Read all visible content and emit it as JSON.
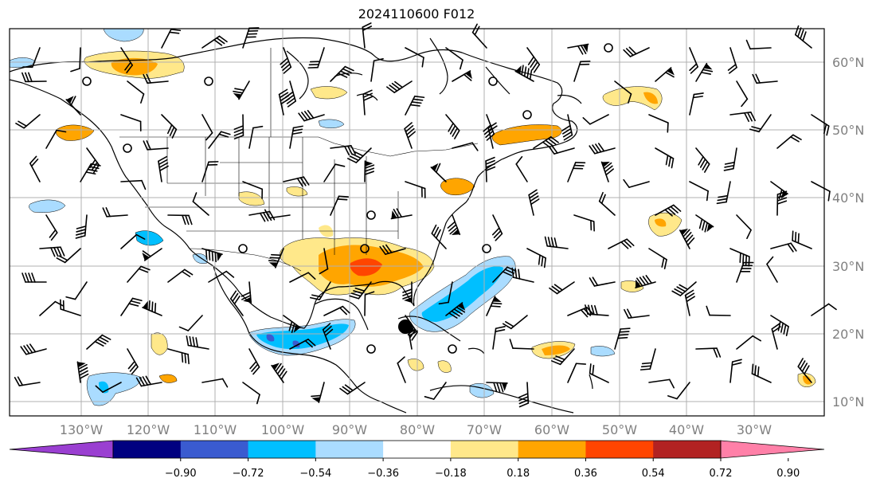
{
  "title": "2024110600 F012",
  "lon_labels": [
    "130°W",
    "120°W",
    "110°W",
    "100°W",
    "90°W",
    "80°W",
    "70°W",
    "60°W",
    "50°W",
    "40°W",
    "30°W"
  ],
  "lat_labels": [
    "60°N",
    "50°N",
    "40°N",
    "30°N",
    "20°N",
    "10°N"
  ],
  "colorbar": {
    "colors": [
      "#9a3fd1",
      "#000080",
      "#3a5bd0",
      "#00bfff",
      "#aadcff",
      "#ffffff",
      "#ffe88a",
      "#ffa500",
      "#ff4500",
      "#b22222",
      "#ff80a8"
    ],
    "tick_labels": [
      "−0.90",
      "−0.72",
      "−0.54",
      "−0.36",
      "−0.18",
      "0.18",
      "0.36",
      "0.54",
      "0.72",
      "0.90"
    ]
  },
  "marker": {
    "label": "point-marker",
    "color": "#000000"
  }
}
